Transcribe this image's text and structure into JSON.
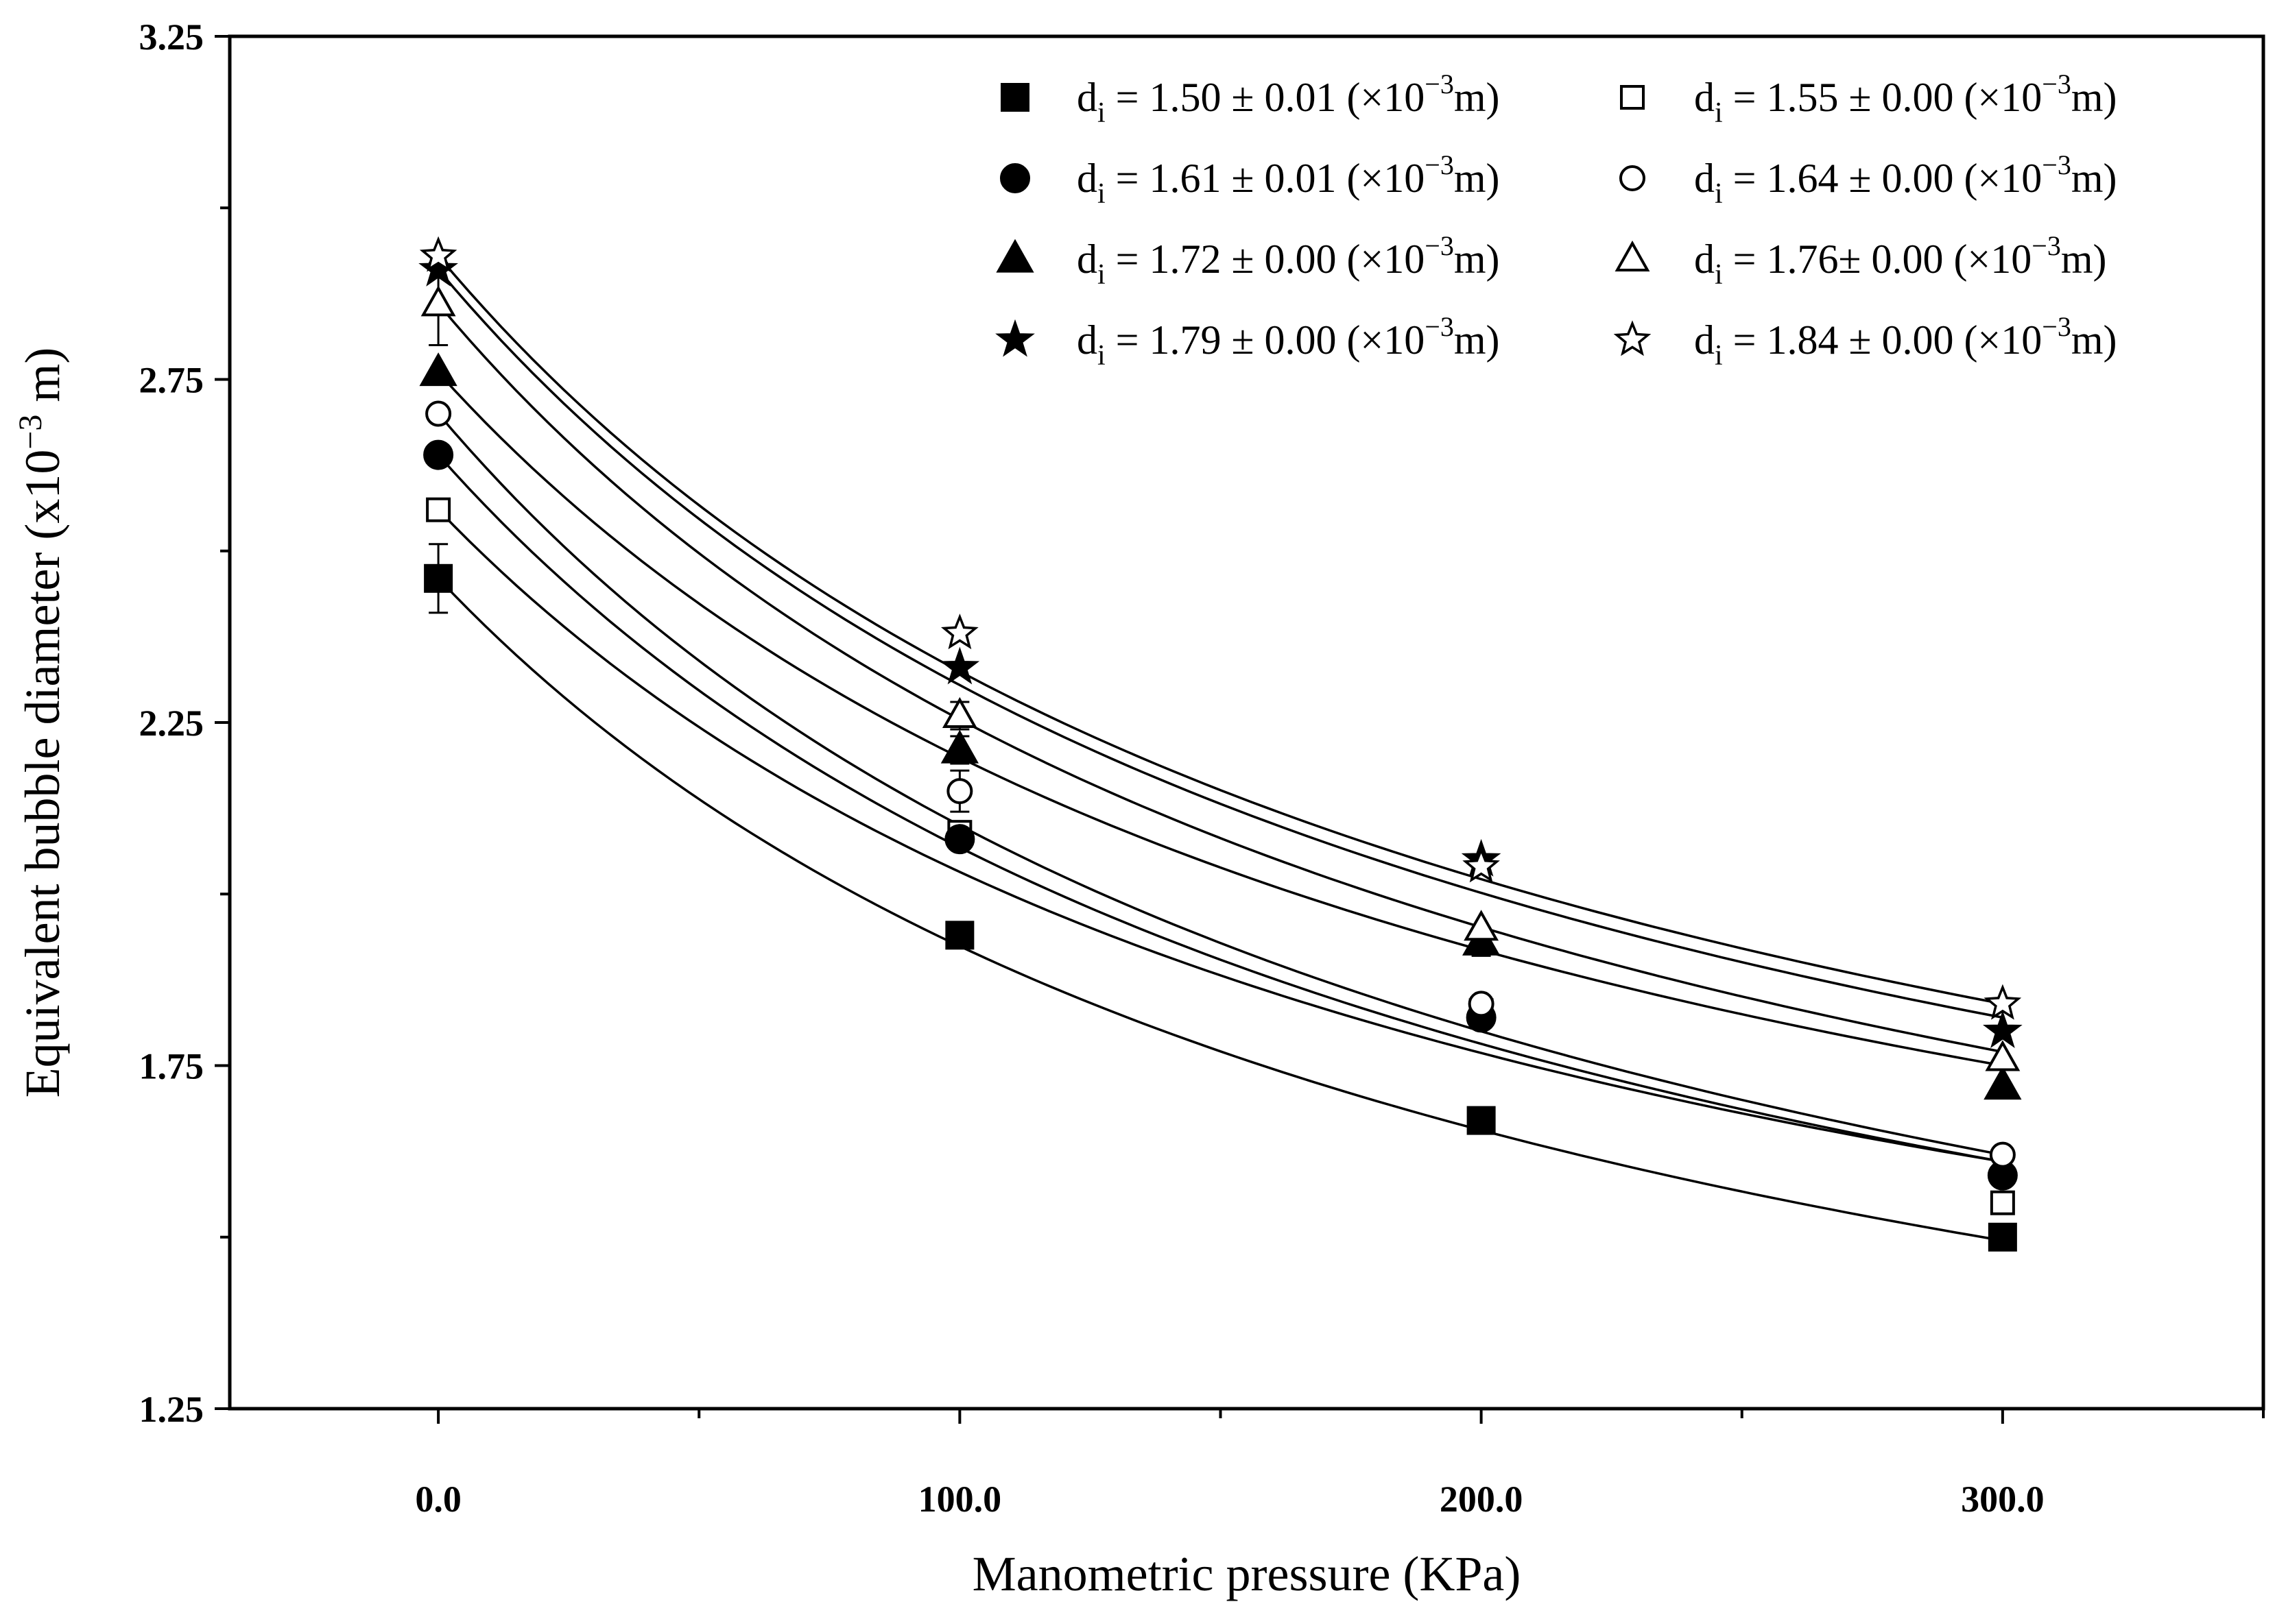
{
  "chart_data": {
    "type": "scatter",
    "xlabel": "Manometric pressure (KPa)",
    "ylabel_main": "Equivalent bubble diameter (x10",
    "ylabel_sup": "−3",
    "ylabel_end": " m)",
    "xlim": [
      -40,
      350
    ],
    "ylim": [
      1.25,
      3.25
    ],
    "x_ticks": [
      0,
      100,
      200,
      300
    ],
    "x_tick_labels": [
      "0.0",
      "100.0",
      "200.0",
      "300.0"
    ],
    "x_minor_ticks": [
      50,
      150,
      250,
      350
    ],
    "y_ticks": [
      1.25,
      1.75,
      2.25,
      2.75,
      3.25
    ],
    "y_tick_labels": [
      "1.25",
      "1.75",
      "2.25",
      "2.75",
      "3.25"
    ],
    "y_minor_ticks": [
      1.5,
      2.0,
      2.5,
      3.0
    ],
    "x": [
      0,
      100,
      200,
      300
    ],
    "series": [
      {
        "name": "1.50",
        "marker": "square",
        "filled": true,
        "values": [
          2.46,
          1.94,
          1.67,
          1.5
        ],
        "errors": [
          0.05,
          0.01,
          0.01,
          0.01
        ],
        "fit_end": 1.495,
        "legend": {
          "pre": "d",
          "sub": "i",
          "mid": " = 1.50 ± 0.01 (×10",
          "sup": "−3",
          "post": "m)"
        }
      },
      {
        "name": "1.55",
        "marker": "square",
        "filled": false,
        "values": [
          2.56,
          2.09,
          1.83,
          1.55
        ],
        "errors": [
          0.01,
          0.01,
          0.01,
          0.01
        ],
        "fit_end": 1.61,
        "legend": {
          "pre": "d",
          "sub": "i",
          "mid": " = 1.55 ± 0.00 (×10",
          "sup": "−3",
          "post": "m)"
        }
      },
      {
        "name": "1.61",
        "marker": "circle",
        "filled": true,
        "values": [
          2.64,
          2.08,
          1.82,
          1.59
        ],
        "errors": [
          0.01,
          0.01,
          0.01,
          0.01
        ],
        "fit_end": 1.61,
        "legend": {
          "pre": "d",
          "sub": "i",
          "mid": " = 1.61 ± 0.01 (×10",
          "sup": "−3",
          "post": "m)"
        }
      },
      {
        "name": "1.64",
        "marker": "circle",
        "filled": false,
        "values": [
          2.7,
          2.15,
          1.84,
          1.62
        ],
        "errors": [
          0.01,
          0.03,
          0.01,
          0.01
        ],
        "fit_end": 1.62,
        "legend": {
          "pre": "d",
          "sub": "i",
          "mid": " = 1.64 ± 0.00 (×10",
          "sup": "−3",
          "post": "m)"
        }
      },
      {
        "name": "1.72",
        "marker": "triangle",
        "filled": true,
        "values": [
          2.76,
          2.21,
          1.93,
          1.72
        ],
        "errors": [
          0.01,
          0.02,
          0.02,
          0.01
        ],
        "fit_end": 1.75,
        "legend": {
          "pre": "d",
          "sub": "i",
          "mid": " = 1.72 ± 0.00 (×10",
          "sup": "−3",
          "post": "m)"
        }
      },
      {
        "name": "1.76",
        "marker": "triangle",
        "filled": false,
        "values": [
          2.86,
          2.26,
          1.95,
          1.76
        ],
        "errors": [
          0.06,
          0.02,
          0.01,
          0.01
        ],
        "fit_end": 1.77,
        "legend": {
          "pre": "d",
          "sub": "i",
          "mid": " = 1.76± 0.00 (×10",
          "sup": "−3",
          "post": "m)"
        }
      },
      {
        "name": "1.79",
        "marker": "star",
        "filled": true,
        "values": [
          2.91,
          2.33,
          2.05,
          1.8
        ],
        "errors": [
          0.01,
          0.01,
          0.01,
          0.01
        ],
        "fit_end": 1.82,
        "legend": {
          "pre": "d",
          "sub": "i",
          "mid": " = 1.79 ± 0.00 (×10",
          "sup": "−3",
          "post": "m)"
        }
      },
      {
        "name": "1.84",
        "marker": "star",
        "filled": false,
        "values": [
          2.93,
          2.38,
          2.04,
          1.84
        ],
        "errors": [
          0.01,
          0.01,
          0.01,
          0.01
        ],
        "fit_end": 1.84,
        "legend": {
          "pre": "d",
          "sub": "i",
          "mid": " = 1.84 ± 0.00 (×10",
          "sup": "−3",
          "post": "m)"
        }
      }
    ],
    "legend_position": "top-right",
    "grid": false
  }
}
